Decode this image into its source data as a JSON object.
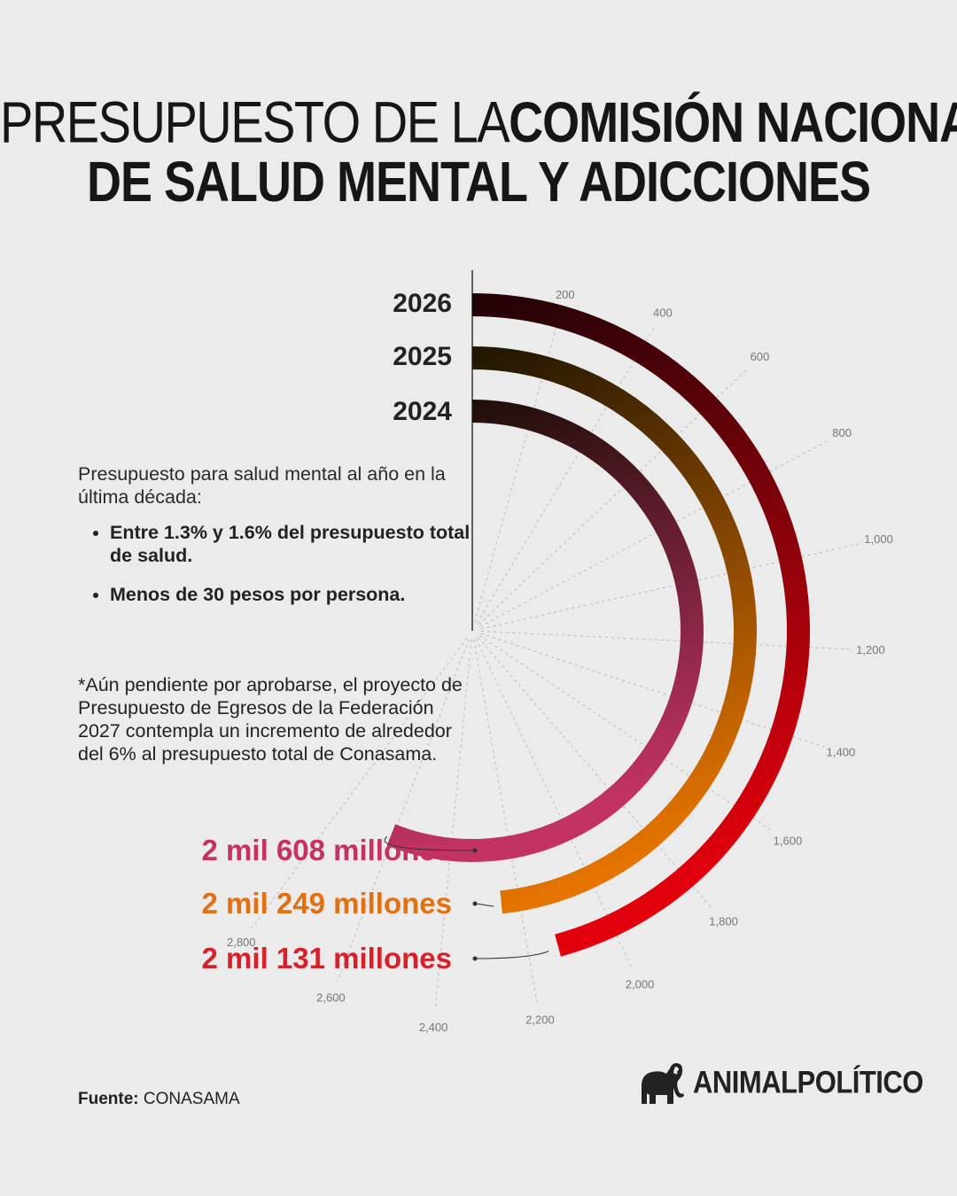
{
  "title": {
    "line1_light": "PRESUPUESTO DE LA ",
    "line1_bold": "COMISIÓN NACIONAL",
    "line2": "DE SALUD MENTAL Y ADICCIONES"
  },
  "chart_data": {
    "type": "radial-bar",
    "series": [
      {
        "category": "2026",
        "value": 2131,
        "value_label": "2 mil 131 millones",
        "color_start": "#230307",
        "color_end": "#e3000d"
      },
      {
        "category": "2025",
        "value": 2249,
        "value_label": "2 mil 249 millones",
        "color_start": "#231703",
        "color_end": "#e57400"
      },
      {
        "category": "2024",
        "value": 2608,
        "value_label": "2 mil 608 millones",
        "color_start": "#1a0d06",
        "color_end": "#c23364"
      }
    ],
    "radial_ticks": [
      "200",
      "400",
      "600",
      "800",
      "1,000",
      "1,200",
      "1,400",
      "1,600",
      "1,800",
      "2,000",
      "2,200",
      "2,400",
      "2,600",
      "2,800"
    ],
    "axis_range": [
      0,
      3000
    ],
    "label_colors": {
      "2024": "#c6325f",
      "2025": "#e37010",
      "2026": "#d7202a"
    }
  },
  "notes": {
    "intro": "Presupuesto para salud mental al año en la última década:",
    "bullets": [
      "Entre 1.3% y 1.6% del presupuesto total de salud.",
      "Menos de 30 pesos por persona."
    ],
    "footnote": "*Aún pendiente por aprobarse, el proyecto de Presupuesto de Egresos de la Federación 2027 contempla un incremento de alrededor del 6% al presupuesto total de Conasama."
  },
  "source": {
    "label": "Fuente:",
    "value": "CONASAMA"
  },
  "brand": {
    "name": "ANIMALPOLÍTICO",
    "icon": "elephant-icon"
  }
}
